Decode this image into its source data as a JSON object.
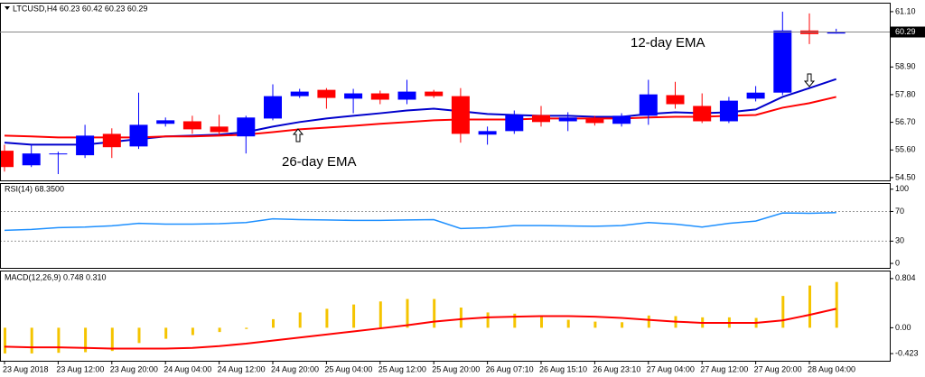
{
  "chart_data": [
    {
      "type": "candlestick",
      "title": "LTCUSD,H4  60.23 60.42 60.23 60.29",
      "categories": [
        "23 Aug 2018",
        null,
        "23 Aug 12:00",
        null,
        "23 Aug 20:00",
        null,
        "24 Aug 04:00",
        null,
        "24 Aug 12:00",
        null,
        "24 Aug 20:00",
        null,
        "25 Aug 04:00",
        null,
        "25 Aug 12:00",
        null,
        "25 Aug 20:00",
        null,
        "26 Aug 07:10",
        null,
        "26 Aug 15:10",
        null,
        "26 Aug 23:10",
        null,
        "27 Aug 04:00",
        null,
        "27 Aug 12:00",
        null,
        "27 Aug 20:00",
        null,
        "28 Aug 04:00",
        null
      ],
      "open": [
        55.57,
        54.99,
        55.46,
        55.39,
        56.24,
        55.74,
        56.64,
        56.74,
        56.53,
        56.14,
        56.85,
        57.74,
        57.99,
        57.64,
        57.85,
        57.6,
        57.92,
        57.74,
        56.21,
        56.35,
        56.99,
        56.74,
        56.85,
        56.64,
        56.96,
        57.78,
        57.35,
        56.74,
        57.64,
        57.88,
        60.35,
        60.23
      ],
      "high": [
        55.81,
        55.81,
        55.53,
        56.6,
        56.46,
        57.88,
        56.89,
        56.96,
        57.0,
        56.96,
        58.21,
        58.03,
        58.06,
        58.03,
        57.96,
        58.39,
        57.99,
        58.06,
        56.53,
        57.17,
        57.35,
        57.1,
        56.96,
        57.06,
        58.39,
        58.31,
        57.85,
        57.71,
        58.14,
        61.1,
        61.03,
        60.42
      ],
      "low": [
        54.74,
        54.92,
        54.64,
        55.28,
        55.28,
        55.64,
        56.53,
        56.24,
        56.17,
        55.46,
        56.78,
        57.67,
        57.24,
        57.06,
        57.42,
        57.42,
        57.67,
        55.89,
        55.81,
        56.24,
        56.53,
        56.35,
        56.57,
        56.53,
        56.6,
        57.24,
        56.67,
        56.67,
        57.53,
        57.78,
        59.81,
        60.23
      ],
      "close": [
        54.92,
        55.46,
        55.46,
        56.17,
        55.71,
        56.6,
        56.78,
        56.42,
        56.31,
        56.89,
        57.74,
        57.92,
        57.67,
        57.85,
        57.6,
        57.92,
        57.74,
        56.24,
        56.35,
        56.99,
        56.71,
        56.89,
        56.67,
        56.96,
        57.81,
        57.42,
        56.74,
        57.56,
        57.88,
        60.35,
        60.21,
        60.29
      ],
      "up_color": "#0000ff",
      "down_color": "#ff0000",
      "series": [
        {
          "color": "#0000cc",
          "values": [
            55.89,
            55.81,
            55.81,
            55.81,
            55.92,
            56.03,
            56.14,
            56.17,
            56.21,
            56.31,
            56.53,
            56.71,
            56.85,
            56.96,
            57.06,
            57.17,
            57.24,
            57.14,
            57.03,
            56.99,
            56.96,
            56.96,
            56.92,
            56.92,
            57.03,
            57.1,
            57.06,
            57.1,
            57.21,
            57.71,
            58.06,
            58.42
          ]
        },
        {
          "color": "#ff0000",
          "values": [
            56.17,
            56.14,
            56.1,
            56.1,
            56.1,
            56.1,
            56.14,
            56.14,
            56.17,
            56.21,
            56.31,
            56.42,
            56.49,
            56.56,
            56.64,
            56.71,
            56.78,
            56.81,
            56.81,
            56.81,
            56.85,
            56.85,
            56.85,
            56.85,
            56.89,
            56.92,
            56.92,
            56.96,
            56.99,
            57.28,
            57.46,
            57.71
          ]
        }
      ],
      "price_line": 60.29,
      "annotations": [
        {
          "text": "12-day EMA"
        },
        {
          "text": "26-day EMA"
        }
      ],
      "ylim": [
        54.39,
        61.42
      ],
      "yticks": [
        {
          "value": 61.1,
          "label": "61.10"
        },
        {
          "value": 58.9,
          "label": "58.90"
        },
        {
          "value": 57.8,
          "label": "57.80"
        },
        {
          "value": 56.7,
          "label": "56.70"
        },
        {
          "value": 55.6,
          "label": "55.60"
        },
        {
          "value": 54.5,
          "label": "54.50"
        }
      ]
    },
    {
      "type": "line",
      "title": "RSI(14) 68.3500",
      "series": [
        {
          "color": "#1e90ff",
          "values": [
            44.6,
            45.8,
            48.2,
            49,
            50.6,
            54,
            53,
            53,
            53.5,
            55,
            60,
            59,
            58.5,
            58,
            58,
            58.5,
            59,
            47,
            48,
            51,
            51,
            50.5,
            50,
            51,
            55,
            53,
            49,
            54,
            57,
            68,
            67.5,
            68.35
          ]
        }
      ],
      "levels": [
        70,
        30
      ],
      "ylim": [
        -6,
        107
      ],
      "yticks": [
        100,
        70,
        30,
        0
      ]
    },
    {
      "type": "macd",
      "title": "MACD(12,26,9) 0.748 0.310",
      "histogram": {
        "color": "#f5c400",
        "values": [
          -0.42,
          -0.42,
          -0.41,
          -0.4,
          -0.38,
          -0.25,
          -0.18,
          -0.12,
          -0.07,
          -0.02,
          0.14,
          0.25,
          0.31,
          0.38,
          0.43,
          0.47,
          0.47,
          0.33,
          0.25,
          0.23,
          0.19,
          0.13,
          0.1,
          0.09,
          0.2,
          0.19,
          0.17,
          0.17,
          0.16,
          0.52,
          0.69,
          0.748
        ]
      },
      "signal": {
        "color": "#ff0000",
        "values": [
          -0.31,
          -0.32,
          -0.32,
          -0.33,
          -0.34,
          -0.34,
          -0.34,
          -0.33,
          -0.3,
          -0.26,
          -0.21,
          -0.16,
          -0.11,
          -0.06,
          -0.01,
          0.04,
          0.1,
          0.14,
          0.17,
          0.18,
          0.19,
          0.19,
          0.18,
          0.16,
          0.13,
          0.1,
          0.08,
          0.08,
          0.08,
          0.12,
          0.21,
          0.31
        ]
      },
      "ylim": [
        -0.54,
        0.92
      ],
      "yticks": [
        0.804,
        {
          "value": 0,
          "label": "0.00"
        },
        -0.423
      ]
    }
  ]
}
